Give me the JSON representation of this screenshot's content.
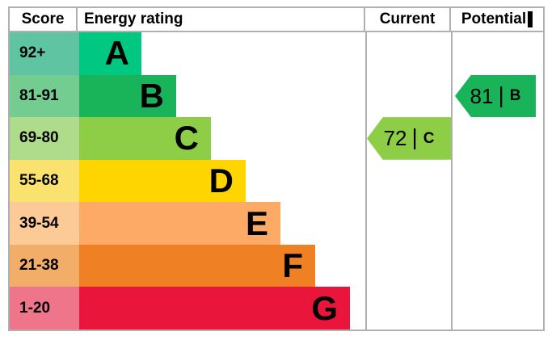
{
  "header": {
    "score_label": "Score",
    "energy_rating_label": "Energy rating",
    "current_label": "Current",
    "potential_label": "Potential"
  },
  "bands": [
    {
      "score_range": "92+",
      "letter": "A",
      "color": "#00c781",
      "tint": "#5ec4a2"
    },
    {
      "score_range": "81-91",
      "letter": "B",
      "color": "#19b459",
      "tint": "#73cc90"
    },
    {
      "score_range": "69-80",
      "letter": "C",
      "color": "#8dce46",
      "tint": "#afdc8b"
    },
    {
      "score_range": "55-68",
      "letter": "D",
      "color": "#ffd500",
      "tint": "#fae26e"
    },
    {
      "score_range": "39-54",
      "letter": "E",
      "color": "#fcaa65",
      "tint": "#fcca97"
    },
    {
      "score_range": "21-38",
      "letter": "F",
      "color": "#ef8023",
      "tint": "#f2ae69"
    },
    {
      "score_range": "1-20",
      "letter": "G",
      "color": "#e9153b",
      "tint": "#ef758a"
    }
  ],
  "current_rating": {
    "value": "72",
    "letter": "C",
    "color": "#8dce46"
  },
  "potential_rating": {
    "value": "81",
    "letter": "B",
    "color": "#19b459"
  },
  "divider_glyph": "|",
  "colors": {
    "border": "#b0b0b0",
    "text": "#000000",
    "background": "#ffffff"
  },
  "chart_data": {
    "type": "bar",
    "title": "Energy rating",
    "orientation": "horizontal",
    "categories": [
      "A",
      "B",
      "C",
      "D",
      "E",
      "F",
      "G"
    ],
    "score_ranges": [
      "92+",
      "81-91",
      "69-80",
      "55-68",
      "39-54",
      "21-38",
      "1-20"
    ],
    "band_colors": [
      "#00c781",
      "#19b459",
      "#8dce46",
      "#ffd500",
      "#fcaa65",
      "#ef8023",
      "#e9153b"
    ],
    "columns": [
      "Score",
      "Energy rating",
      "Current",
      "Potential"
    ],
    "current": {
      "score": 72,
      "band": "C"
    },
    "potential": {
      "score": 81,
      "band": "B"
    },
    "legend_position": "none",
    "grid": false
  }
}
